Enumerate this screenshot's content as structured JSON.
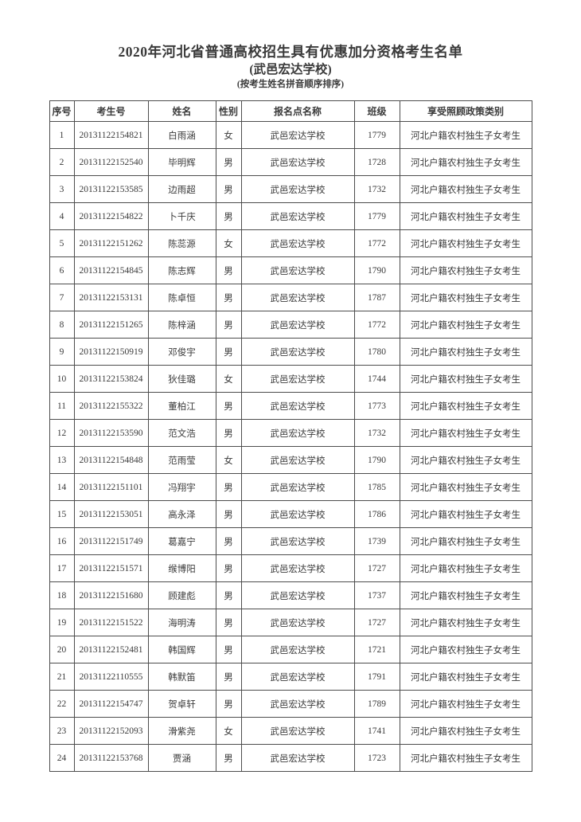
{
  "page": {
    "title": "2020年河北省普通高校招生具有优惠加分资格考生名单",
    "subtitle": "(武邑宏达学校)",
    "sort_note": "(按考生姓名拼音顺序排序)"
  },
  "table": {
    "columns": [
      "序号",
      "考生号",
      "姓名",
      "性别",
      "报名点名称",
      "班级",
      "享受照顾政策类别"
    ],
    "rows": [
      [
        "1",
        "20131122154821",
        "白雨涵",
        "女",
        "武邑宏达学校",
        "1779",
        "河北户籍农村独生子女考生"
      ],
      [
        "2",
        "20131122152540",
        "毕明辉",
        "男",
        "武邑宏达学校",
        "1728",
        "河北户籍农村独生子女考生"
      ],
      [
        "3",
        "20131122153585",
        "边雨超",
        "男",
        "武邑宏达学校",
        "1732",
        "河北户籍农村独生子女考生"
      ],
      [
        "4",
        "20131122154822",
        "卜千庆",
        "男",
        "武邑宏达学校",
        "1779",
        "河北户籍农村独生子女考生"
      ],
      [
        "5",
        "20131122151262",
        "陈蕊源",
        "女",
        "武邑宏达学校",
        "1772",
        "河北户籍农村独生子女考生"
      ],
      [
        "6",
        "20131122154845",
        "陈志辉",
        "男",
        "武邑宏达学校",
        "1790",
        "河北户籍农村独生子女考生"
      ],
      [
        "7",
        "20131122153131",
        "陈卓恒",
        "男",
        "武邑宏达学校",
        "1787",
        "河北户籍农村独生子女考生"
      ],
      [
        "8",
        "20131122151265",
        "陈梓涵",
        "男",
        "武邑宏达学校",
        "1772",
        "河北户籍农村独生子女考生"
      ],
      [
        "9",
        "20131122150919",
        "邓俊宇",
        "男",
        "武邑宏达学校",
        "1780",
        "河北户籍农村独生子女考生"
      ],
      [
        "10",
        "20131122153824",
        "狄佳璐",
        "女",
        "武邑宏达学校",
        "1744",
        "河北户籍农村独生子女考生"
      ],
      [
        "11",
        "20131122155322",
        "董柏江",
        "男",
        "武邑宏达学校",
        "1773",
        "河北户籍农村独生子女考生"
      ],
      [
        "12",
        "20131122153590",
        "范文浩",
        "男",
        "武邑宏达学校",
        "1732",
        "河北户籍农村独生子女考生"
      ],
      [
        "13",
        "20131122154848",
        "范雨莹",
        "女",
        "武邑宏达学校",
        "1790",
        "河北户籍农村独生子女考生"
      ],
      [
        "14",
        "20131122151101",
        "冯翔宇",
        "男",
        "武邑宏达学校",
        "1785",
        "河北户籍农村独生子女考生"
      ],
      [
        "15",
        "20131122153051",
        "高永泽",
        "男",
        "武邑宏达学校",
        "1786",
        "河北户籍农村独生子女考生"
      ],
      [
        "16",
        "20131122151749",
        "葛嘉宁",
        "男",
        "武邑宏达学校",
        "1739",
        "河北户籍农村独生子女考生"
      ],
      [
        "17",
        "20131122151571",
        "缑博阳",
        "男",
        "武邑宏达学校",
        "1727",
        "河北户籍农村独生子女考生"
      ],
      [
        "18",
        "20131122151680",
        "顾建彪",
        "男",
        "武邑宏达学校",
        "1737",
        "河北户籍农村独生子女考生"
      ],
      [
        "19",
        "20131122151522",
        "海明涛",
        "男",
        "武邑宏达学校",
        "1727",
        "河北户籍农村独生子女考生"
      ],
      [
        "20",
        "20131122152481",
        "韩国辉",
        "男",
        "武邑宏达学校",
        "1721",
        "河北户籍农村独生子女考生"
      ],
      [
        "21",
        "20131122110555",
        "韩默笛",
        "男",
        "武邑宏达学校",
        "1791",
        "河北户籍农村独生子女考生"
      ],
      [
        "22",
        "20131122154747",
        "贺卓轩",
        "男",
        "武邑宏达学校",
        "1789",
        "河北户籍农村独生子女考生"
      ],
      [
        "23",
        "20131122152093",
        "滑紫尧",
        "女",
        "武邑宏达学校",
        "1741",
        "河北户籍农村独生子女考生"
      ],
      [
        "24",
        "20131122153768",
        "贾涵",
        "男",
        "武邑宏达学校",
        "1723",
        "河北户籍农村独生子女考生"
      ]
    ]
  },
  "colors": {
    "text": "#3a3a3a",
    "border": "#4d4d4d",
    "background": "#ffffff"
  }
}
